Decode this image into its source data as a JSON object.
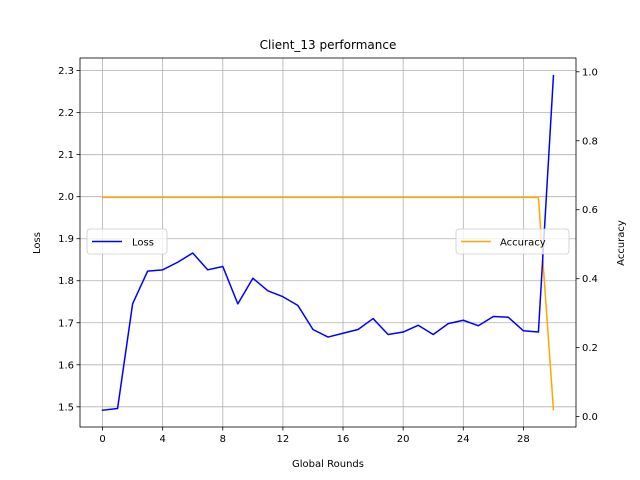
{
  "chart_data": {
    "type": "line",
    "title": "Client_13 performance",
    "xlabel": "Global Rounds",
    "ylabel_left": "Loss",
    "ylabel_right": "Accuracy",
    "x": [
      0,
      1,
      2,
      3,
      4,
      5,
      6,
      7,
      8,
      9,
      10,
      11,
      12,
      13,
      14,
      15,
      16,
      17,
      18,
      19,
      20,
      21,
      22,
      23,
      24,
      25,
      26,
      27,
      28,
      29,
      30
    ],
    "xlim": [
      -1.5,
      31.5
    ],
    "xticks": [
      0,
      4,
      8,
      12,
      16,
      20,
      24,
      28
    ],
    "xtick_labels": [
      "0",
      "4",
      "8",
      "12",
      "16",
      "20",
      "24",
      "28"
    ],
    "ylim_left": [
      1.452,
      2.33
    ],
    "yticks_left": [
      1.5,
      1.6,
      1.7,
      1.8,
      1.9,
      2.0,
      2.1,
      2.2,
      2.3
    ],
    "ytick_labels_left": [
      "1.5",
      "1.6",
      "1.7",
      "1.8",
      "1.9",
      "2.0",
      "2.1",
      "2.2",
      "2.3"
    ],
    "ylim_right": [
      -0.03,
      1.04
    ],
    "yticks_right": [
      0.0,
      0.2,
      0.4,
      0.6,
      0.8,
      1.0
    ],
    "ytick_labels_right": [
      "0.0",
      "0.2",
      "0.4",
      "0.6",
      "0.8",
      "1.0"
    ],
    "grid": true,
    "series": [
      {
        "name": "Loss",
        "axis": "left",
        "color": "#0000ff",
        "legend_position": "center-left",
        "values": [
          1.492,
          1.496,
          1.745,
          1.823,
          1.826,
          1.844,
          1.866,
          1.826,
          1.834,
          1.745,
          1.806,
          1.776,
          1.762,
          1.741,
          1.684,
          1.666,
          1.675,
          1.684,
          1.71,
          1.672,
          1.678,
          1.694,
          1.672,
          1.698,
          1.706,
          1.693,
          1.715,
          1.713,
          1.681,
          1.678,
          2.288
        ]
      },
      {
        "name": "Accuracy",
        "axis": "right",
        "color": "#ffa500",
        "legend_position": "center-right",
        "values": [
          0.636,
          0.636,
          0.636,
          0.636,
          0.636,
          0.636,
          0.636,
          0.636,
          0.636,
          0.636,
          0.636,
          0.636,
          0.636,
          0.636,
          0.636,
          0.636,
          0.636,
          0.636,
          0.636,
          0.636,
          0.636,
          0.636,
          0.636,
          0.636,
          0.636,
          0.636,
          0.636,
          0.636,
          0.636,
          0.636,
          0.02
        ]
      }
    ]
  }
}
